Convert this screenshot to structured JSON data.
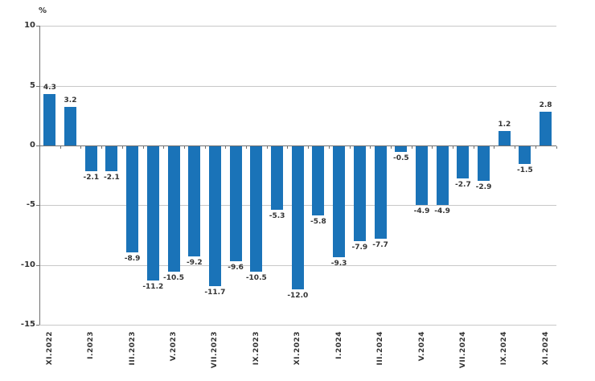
{
  "chart_data": {
    "type": "bar",
    "title": "",
    "ylabel": "%",
    "values": [
      4.3,
      3.2,
      -2.1,
      -2.1,
      -8.9,
      -11.2,
      -10.5,
      -9.2,
      -11.7,
      -9.6,
      -10.5,
      -5.3,
      -12.0,
      -5.8,
      -9.3,
      -7.9,
      -7.7,
      -0.5,
      -4.9,
      -4.9,
      -2.7,
      -2.9,
      1.2,
      -1.5,
      2.8
    ],
    "value_label_decimals": 1,
    "x_tick_labels": [
      "XI.2022",
      "I.2023",
      "III.2023",
      "V.2023",
      "VII.2023",
      "IX.2023",
      "XI.2023",
      "I.2024",
      "III.2024",
      "V.2024",
      "VII.2024",
      "IX.2024",
      "XI.2024"
    ],
    "x_tick_every": 2,
    "ylim": [
      -15,
      10
    ],
    "yticks": [
      10,
      5,
      0,
      -5,
      -10,
      -15
    ],
    "grid": true,
    "legend": "none",
    "bar_color": "#1a73b8",
    "grid_color": "#c8c8c8",
    "axis_color": "#707070",
    "text_color": "#333333"
  }
}
